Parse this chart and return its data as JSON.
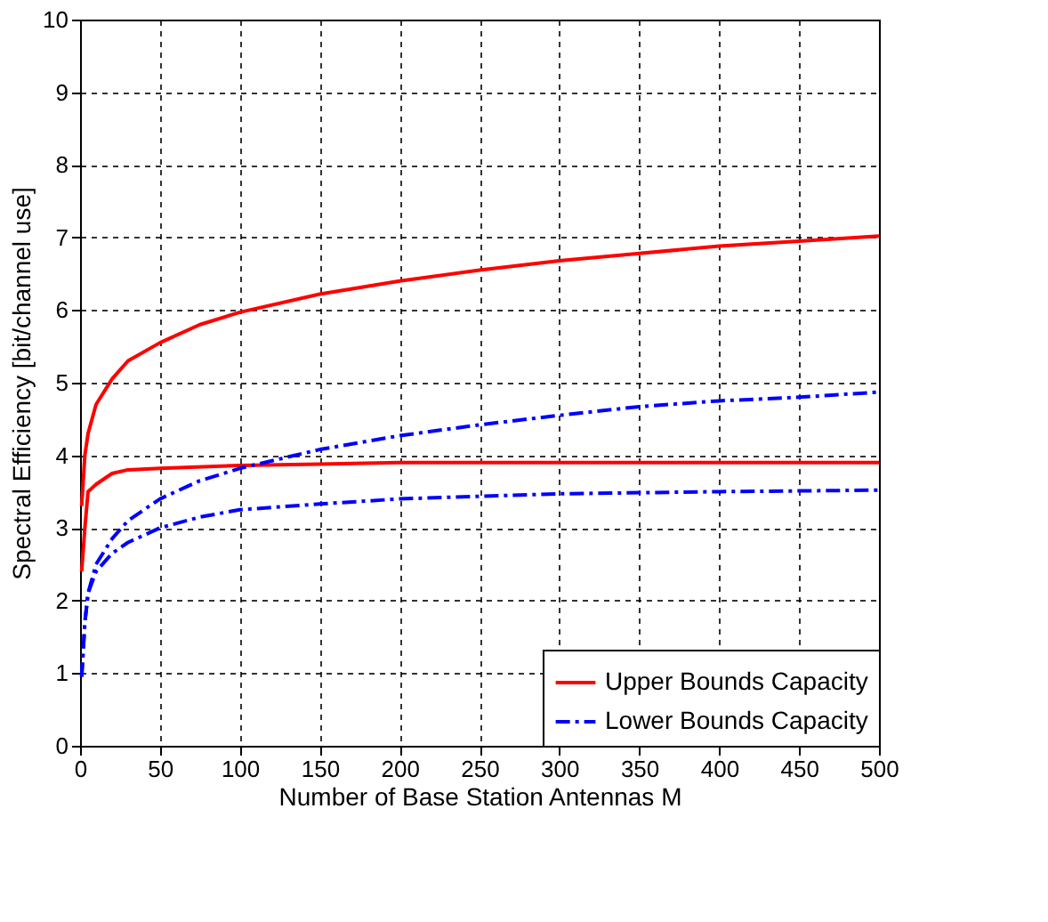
{
  "chart_data": {
    "type": "line",
    "xlabel": "Number of Base Station Antennas M",
    "ylabel": "Spectral Efficiency [bit/channel use]",
    "xlim": [
      0,
      500
    ],
    "xticks": [
      0,
      50,
      100,
      150,
      200,
      250,
      300,
      350,
      400,
      450,
      500
    ],
    "ylim": [
      0,
      10
    ],
    "yticks": [
      0,
      1,
      2,
      3,
      4,
      5,
      6,
      7,
      8,
      9,
      10
    ],
    "grid": true,
    "legend": "bottom right",
    "marker": "none",
    "series": [
      {
        "name": "Upper Bounds Capacity",
        "color": "#ff0000",
        "line_style": "solid",
        "x": [
          1,
          3,
          5,
          10,
          20,
          30,
          50,
          75,
          100,
          150,
          200,
          250,
          300,
          350,
          400,
          450,
          500
        ],
        "values": [
          3.3,
          4.0,
          4.3,
          4.7,
          5.05,
          5.3,
          5.55,
          5.8,
          5.97,
          6.22,
          6.4,
          6.55,
          6.68,
          6.78,
          6.88,
          6.95,
          7.02
        ]
      },
      {
        "color": "#ff0000",
        "line_style": "solid",
        "x": [
          1,
          3,
          5,
          10,
          20,
          30,
          50,
          100,
          150,
          200,
          300,
          500
        ],
        "values": [
          2.4,
          3.0,
          3.5,
          3.6,
          3.75,
          3.8,
          3.82,
          3.86,
          3.88,
          3.9,
          3.9,
          3.9
        ]
      },
      {
        "name": "Lower Bounds Capacity",
        "color": "#0000ff",
        "line_style": "dashed",
        "x": [
          1,
          3,
          5,
          10,
          20,
          30,
          50,
          75,
          100,
          150,
          200,
          250,
          300,
          350,
          400,
          450,
          500
        ],
        "values": [
          0.95,
          1.7,
          2.1,
          2.5,
          2.85,
          3.1,
          3.4,
          3.65,
          3.82,
          4.08,
          4.27,
          4.42,
          4.55,
          4.67,
          4.75,
          4.8,
          4.87
        ]
      },
      {
        "color": "#0000ff",
        "line_style": "dashed",
        "x": [
          1,
          3,
          5,
          10,
          20,
          30,
          50,
          75,
          100,
          150,
          200,
          300,
          400,
          500
        ],
        "values": [
          0.95,
          1.7,
          2.1,
          2.4,
          2.65,
          2.8,
          3.0,
          3.15,
          3.25,
          3.33,
          3.4,
          3.47,
          3.5,
          3.52
        ]
      }
    ]
  }
}
